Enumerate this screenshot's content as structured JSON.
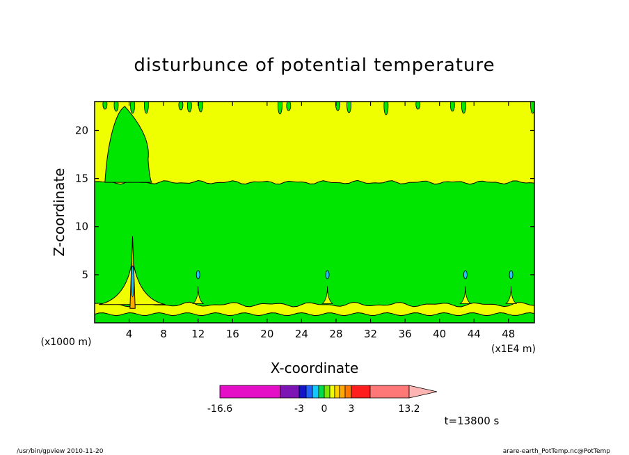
{
  "chart_data": {
    "type": "heatmap",
    "title": "disturbunce of potential temperature",
    "xlabel": "X-coordinate",
    "ylabel": "Z-coordinate",
    "x_unit_left": "(x1000 m)",
    "x_unit_right": "(x1E4 m)",
    "xlim": [
      0,
      51
    ],
    "ylim": [
      0,
      23
    ],
    "x_ticks": [
      4,
      8,
      12,
      16,
      20,
      24,
      28,
      32,
      36,
      40,
      44,
      48
    ],
    "y_ticks": [
      5,
      10,
      15,
      20
    ],
    "time_label": "t=13800 s",
    "colorbar": {
      "tick_labels": [
        "-16.6",
        "-3",
        "0",
        "3",
        "13.2"
      ],
      "bins": [
        {
          "color": "#e60fc8",
          "from": -16.6,
          "to": -6.0
        },
        {
          "color": "#7d14b4",
          "from": -6.0,
          "to": -3.0
        },
        {
          "color": "#1414c8",
          "from": -3.0,
          "to": -2.0
        },
        {
          "color": "#1e64ff",
          "from": -2.0,
          "to": -1.0
        },
        {
          "color": "#14c8ff",
          "from": -1.0,
          "to": -0.5
        },
        {
          "color": "#00dc50",
          "from": -0.5,
          "to": 0.0
        },
        {
          "color": "#78e600",
          "from": 0.0,
          "to": 0.5
        },
        {
          "color": "#f0ff00",
          "from": 0.5,
          "to": 1.0
        },
        {
          "color": "#ffd200",
          "from": 1.0,
          "to": 1.5
        },
        {
          "color": "#ffaa00",
          "from": 1.5,
          "to": 2.0
        },
        {
          "color": "#ff7800",
          "from": 2.0,
          "to": 3.0
        },
        {
          "color": "#ff1e1e",
          "from": 3.0,
          "to": 6.0
        },
        {
          "color": "#ff7878",
          "from": 6.0,
          "to": 13.2
        },
        {
          "color": "#ffb4b4",
          "from": 13.2,
          "to": null
        }
      ]
    },
    "field_colors": {
      "positive_small": "#f0ff00",
      "near_zero": "#00e600",
      "negative_small": "#14c8ff",
      "positive_mid": "#ffaa00"
    }
  },
  "footer": {
    "left": "/usr/bin/gpview   2010-11-20",
    "right": "arare-earth_PotTemp.nc@PotTemp"
  }
}
